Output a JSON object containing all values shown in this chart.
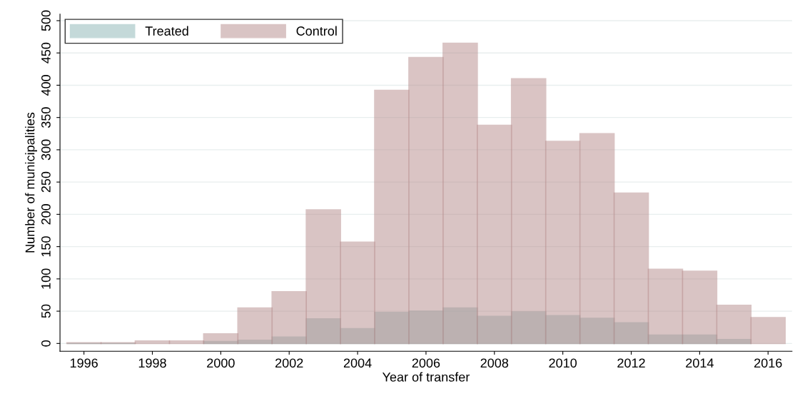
{
  "chart_data": {
    "type": "histogram",
    "xlabel": "Year of transfer",
    "ylabel": "Number of municipalities",
    "bins": [
      1995.5,
      1996.5,
      1997.5,
      1998.5,
      1999.5,
      2000.5,
      2001.5,
      2002.5,
      2003.5,
      2004.5,
      2005.5,
      2006.5,
      2007.5,
      2008.5,
      2009.5,
      2010.5,
      2011.5,
      2012.5,
      2013.5,
      2014.5,
      2015.5,
      2016.5
    ],
    "series": [
      {
        "name": "Treated",
        "color": "#8ab5b5",
        "values": [
          0,
          0,
          null,
          null,
          3,
          5,
          10,
          38,
          23,
          48,
          50,
          55,
          42,
          49,
          43,
          39,
          32,
          13,
          13,
          6,
          null
        ]
      },
      {
        "name": "Control",
        "color": "#b58a8a",
        "values": [
          1,
          1,
          4,
          4,
          15,
          55,
          80,
          207,
          157,
          392,
          443,
          465,
          338,
          410,
          313,
          325,
          233,
          115,
          112,
          59,
          40
        ]
      }
    ],
    "xlim": [
      1995.3,
      2016.7
    ],
    "xticks": [
      1996,
      1998,
      2000,
      2002,
      2004,
      2006,
      2008,
      2010,
      2012,
      2014,
      2016
    ],
    "ylim": [
      -12,
      510
    ],
    "yticks": [
      0,
      50,
      100,
      150,
      200,
      250,
      300,
      350,
      400,
      450,
      500
    ],
    "grid": "y",
    "legend": "top left"
  }
}
